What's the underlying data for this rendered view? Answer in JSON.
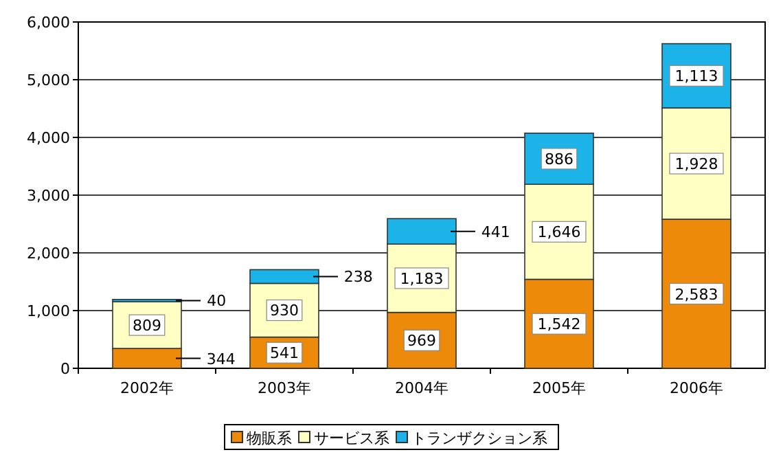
{
  "chart_data": {
    "type": "bar",
    "stacked": true,
    "categories": [
      "2002年",
      "2003年",
      "2004年",
      "2005年",
      "2006年"
    ],
    "series": [
      {
        "name": "物販系",
        "color": "#ee8a0a",
        "values": [
          344,
          541,
          969,
          1542,
          2583
        ],
        "value_labels": [
          "344",
          "541",
          "969",
          "1,542",
          "2,583"
        ]
      },
      {
        "name": "サービス系",
        "color": "#ffffc4",
        "values": [
          809,
          930,
          1183,
          1646,
          1928
        ],
        "value_labels": [
          "809",
          "930",
          "1,183",
          "1,646",
          "1,928"
        ]
      },
      {
        "name": "トランザクション系",
        "color": "#1cb4e8",
        "values": [
          40,
          238,
          441,
          886,
          1113
        ],
        "value_labels": [
          "40",
          "238",
          "441",
          "886",
          "1,113"
        ]
      }
    ],
    "ylim": [
      0,
      6000
    ],
    "yticks": [
      0,
      {
        "value": 1000,
        "label": "1,000"
      },
      {
        "value": 2000,
        "label": "2,000"
      },
      {
        "value": 3000,
        "label": "3,000"
      },
      {
        "value": 4000,
        "label": "4,000"
      },
      {
        "value": 5000,
        "label": "5,000"
      },
      {
        "value": 6000,
        "label": "6,000"
      }
    ],
    "grid": "y",
    "legend": "bottom"
  }
}
